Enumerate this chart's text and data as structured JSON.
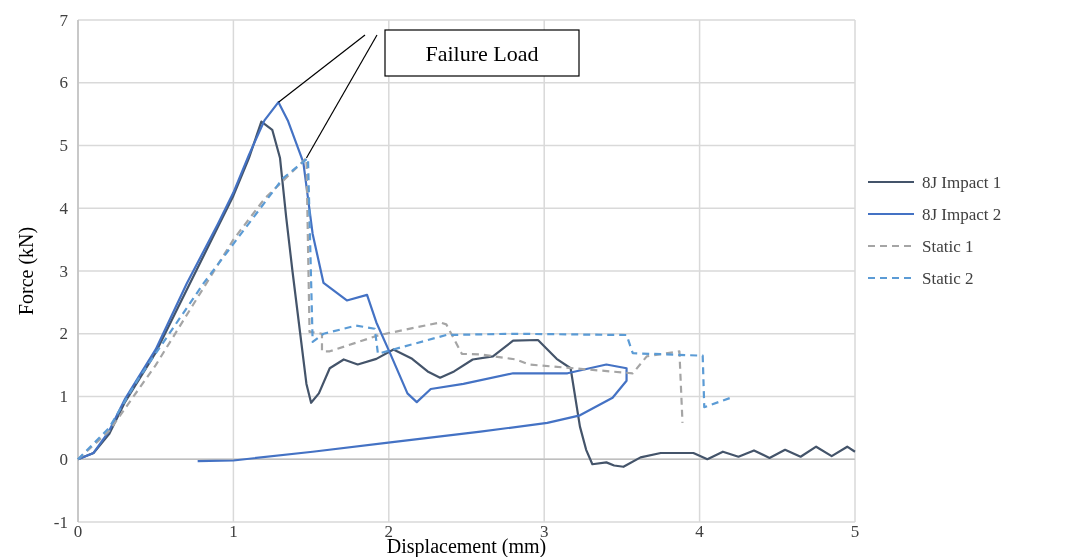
{
  "chart_data": {
    "type": "line",
    "xlabel": "Displacement (mm)",
    "ylabel": "Force (kN)",
    "xlim": [
      0,
      5
    ],
    "ylim": [
      -1,
      7
    ],
    "xticks": [
      0,
      1,
      2,
      3,
      4,
      5
    ],
    "yticks": [
      -1,
      0,
      1,
      2,
      3,
      4,
      5,
      6,
      7
    ],
    "grid": true,
    "legend": "right",
    "annotations": [
      "Failure Load"
    ],
    "series": [
      {
        "name": "8J Impact 1",
        "color": "#44546a",
        "line_style": "solid",
        "x": [
          0,
          0.1,
          0.2,
          0.3,
          0.5,
          0.7,
          0.9,
          1.0,
          1.1,
          1.18,
          1.25,
          1.3,
          1.34,
          1.38,
          1.43,
          1.47,
          1.5,
          1.55,
          1.62,
          1.71,
          1.8,
          1.92,
          2.03,
          2.15,
          2.25,
          2.33,
          2.42,
          2.54,
          2.67,
          2.8,
          2.96,
          3.08,
          3.17,
          3.23,
          3.27,
          3.31,
          3.4,
          3.45,
          3.51,
          3.62,
          3.75,
          3.96,
          4.05,
          4.15,
          4.25,
          4.35,
          4.45,
          4.55,
          4.65,
          4.75,
          4.85,
          4.95,
          5.0
        ],
        "values": [
          0,
          0.1,
          0.4,
          0.9,
          1.7,
          2.7,
          3.7,
          4.2,
          4.8,
          5.38,
          5.25,
          4.8,
          3.85,
          3.0,
          2.0,
          1.2,
          0.9,
          1.05,
          1.45,
          1.59,
          1.51,
          1.6,
          1.75,
          1.6,
          1.4,
          1.3,
          1.4,
          1.59,
          1.64,
          1.89,
          1.9,
          1.6,
          1.45,
          0.52,
          0.15,
          -0.08,
          -0.05,
          -0.1,
          -0.12,
          0.03,
          0.1,
          0.1,
          0.0,
          0.12,
          0.04,
          0.14,
          0.02,
          0.15,
          0.04,
          0.2,
          0.05,
          0.2,
          0.12
        ]
      },
      {
        "name": "8J Impact 2",
        "color": "#4472c4",
        "line_style": "solid",
        "x": [
          0,
          0.1,
          0.2,
          0.3,
          0.5,
          0.7,
          0.9,
          1.0,
          1.1,
          1.2,
          1.29,
          1.35,
          1.45,
          1.51,
          1.58,
          1.73,
          1.86,
          1.92,
          2.01,
          2.12,
          2.18,
          2.27,
          2.48,
          2.8,
          3.02,
          3.15,
          3.4,
          3.53,
          3.53,
          3.44,
          3.23,
          3.02,
          2.59,
          2.01,
          1.51,
          1.0,
          0.77
        ],
        "values": [
          0,
          0.1,
          0.45,
          0.95,
          1.75,
          2.8,
          3.75,
          4.25,
          4.85,
          5.4,
          5.69,
          5.4,
          4.73,
          3.59,
          2.81,
          2.53,
          2.62,
          2.18,
          1.68,
          1.05,
          0.91,
          1.12,
          1.2,
          1.37,
          1.37,
          1.37,
          1.51,
          1.45,
          1.25,
          0.98,
          0.7,
          0.58,
          0.44,
          0.27,
          0.12,
          -0.02,
          -0.03
        ]
      },
      {
        "name": "Static 1",
        "color": "#a5a5a5",
        "line_style": "dashed",
        "x": [
          0,
          0.2,
          0.5,
          0.8,
          1.0,
          1.2,
          1.47,
          1.49,
          1.57,
          1.57,
          1.62,
          1.94,
          2.33,
          2.37,
          2.47,
          2.59,
          2.82,
          2.9,
          3.57,
          3.66,
          3.87,
          3.89
        ],
        "values": [
          0,
          0.45,
          1.5,
          2.7,
          3.5,
          4.15,
          4.8,
          2.03,
          2.0,
          1.72,
          1.72,
          1.98,
          2.18,
          2.15,
          1.68,
          1.67,
          1.59,
          1.51,
          1.37,
          1.64,
          1.72,
          0.58
        ]
      },
      {
        "name": "Static 2",
        "color": "#5b9bd5",
        "line_style": "dashed",
        "x": [
          0,
          0.2,
          0.38,
          0.81,
          1.32,
          1.48,
          1.51,
          1.58,
          1.79,
          1.91,
          1.93,
          2.03,
          2.37,
          2.8,
          3.53,
          3.57,
          4.02,
          4.03,
          4.2
        ],
        "values": [
          0,
          0.5,
          1.25,
          2.81,
          4.48,
          4.8,
          1.87,
          2.0,
          2.13,
          2.08,
          1.68,
          1.75,
          1.98,
          2.0,
          1.98,
          1.69,
          1.65,
          0.83,
          0.98
        ]
      }
    ]
  }
}
